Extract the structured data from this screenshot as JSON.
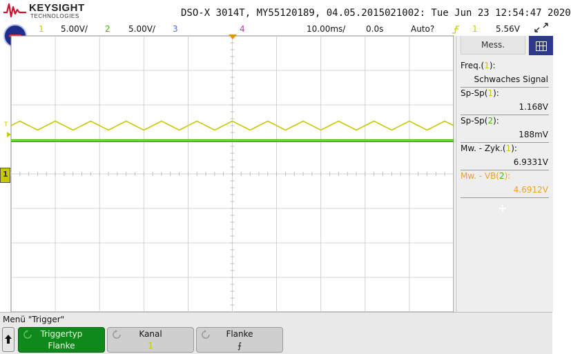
{
  "brand": {
    "name": "KEYSIGHT",
    "sub": "TECHNOLOGIES"
  },
  "header": {
    "model": "DSO-X 3014T, MY55120189, 04.05.2015021002: Tue Jun 23 12:54:47 2020"
  },
  "status": {
    "ch1_num": "1",
    "ch1_scale": "5.00V/",
    "ch2_num": "2",
    "ch2_scale": "5.00V/",
    "ch3_num": "3",
    "ch4_num": "4",
    "timebase": "10.00ms/",
    "delay": "0.0s",
    "trigger_mode": "Auto?",
    "trigger_channel": "1",
    "trigger_level": "5.56V"
  },
  "markers": {
    "trig_level": "T",
    "ch1_ground": "1"
  },
  "sidebar": {
    "tab": "Mess.",
    "m1": {
      "label_a": "Freq.(",
      "chan": "1",
      "label_b": "):",
      "value": "Schwaches Signal"
    },
    "m2": {
      "label_a": "Sp-Sp(",
      "chan": "1",
      "label_b": "):",
      "value": "1.168V"
    },
    "m3": {
      "label_a": "Sp-Sp(",
      "chan": "2",
      "label_b": "):",
      "value": "188mV"
    },
    "m4": {
      "label_a": "Mw. - Zyk.(",
      "chan": "1",
      "label_b": "):",
      "value": "6.9331V"
    },
    "m5": {
      "label_a": "Mw. - VB(",
      "chan": "2",
      "label_b": "):",
      "value": "4.6912V"
    },
    "add": "+"
  },
  "menu": {
    "title": "Menü \"Trigger\"",
    "softkeys": [
      {
        "title": "Triggertyp",
        "value": "Flanke"
      },
      {
        "title": "Kanal",
        "value": "1"
      },
      {
        "title": "Flanke",
        "value": "⨍"
      }
    ]
  },
  "colors": {
    "ch1": "#c8c800",
    "ch2": "#3cb800",
    "ch3": "#4a6ad0",
    "ch4": "#c030c0",
    "ch2_light": "#8ce060",
    "accent_orange": "#f0a020",
    "softkey_active": "#0f8a1a",
    "softkey_inactive": "#cfcfcf"
  },
  "traces": {
    "ch1": {
      "form": "triangle",
      "cycles": 10,
      "divisions_per_cycle": 0.8
    },
    "ch2": {
      "form": "flat"
    }
  }
}
